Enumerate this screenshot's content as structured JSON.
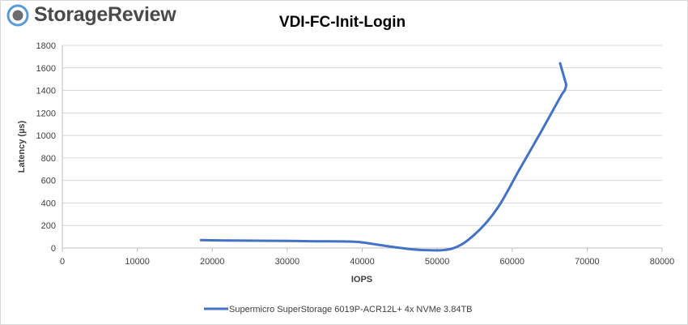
{
  "brand": {
    "name": "StorageReview",
    "icon": "storagereview-logo-icon",
    "colors": {
      "text": "#4a4a4a",
      "ring": "#5b9bd5",
      "core": "#6d6d6d"
    }
  },
  "chart_data": {
    "type": "line",
    "title": "VDI-FC-Init-Login",
    "xlabel": "IOPS",
    "ylabel": "Latency (µs)",
    "xlim": [
      0,
      80000
    ],
    "ylim": [
      0,
      1800
    ],
    "x_ticks": [
      0,
      10000,
      20000,
      30000,
      40000,
      50000,
      60000,
      70000,
      80000
    ],
    "y_ticks": [
      0,
      200,
      400,
      600,
      800,
      1000,
      1200,
      1400,
      1600,
      1800
    ],
    "grid": "horizontal",
    "legend_position": "bottom",
    "series": [
      {
        "name": "Supermicro SuperStorage 6019P-ACR12L+ 4x NVMe 3.84TB",
        "color": "#4472c4",
        "x": [
          18500,
          22000,
          26000,
          30000,
          34000,
          37500,
          40000,
          44000,
          48000,
          52000,
          55000,
          58000,
          61000,
          64000,
          66500,
          67000,
          67200,
          67000,
          66400
        ],
        "y": [
          70,
          67,
          65,
          63,
          60,
          58,
          50,
          10,
          -18,
          -5,
          120,
          350,
          700,
          1050,
          1350,
          1400,
          1450,
          1500,
          1640
        ]
      }
    ]
  }
}
